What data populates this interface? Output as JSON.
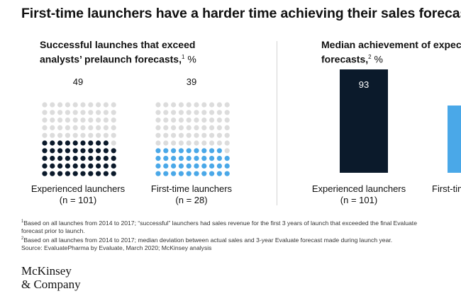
{
  "title": "First-time launchers have a harder time achieving their sales forecasts.",
  "left_panel": {
    "subtitle_line1": "Successful launches that exceed",
    "subtitle_line2": "analysts’ prelaunch forecasts,",
    "subtitle_sup": "1",
    "subtitle_unit": "%"
  },
  "right_panel": {
    "subtitle_line1": "Median achievement of expected",
    "subtitle_line2": "forecasts,",
    "subtitle_sup": "2",
    "subtitle_unit": "%"
  },
  "chart_data": [
    {
      "type": "waffle",
      "unit": "%",
      "grid": [
        10,
        10
      ],
      "categories": [
        "Experienced launchers",
        "First-time launchers"
      ],
      "sample_sizes": [
        "(n = 101)",
        "(n = 28)"
      ],
      "values": [
        49,
        39
      ],
      "colors": [
        "#0b1a2b",
        "#4aa8e8"
      ],
      "empty_color": "#dcdcdc"
    },
    {
      "type": "bar",
      "unit": "%",
      "categories": [
        "Experienced launchers",
        "First-time launchers"
      ],
      "sample_sizes": [
        "(n = 101)",
        ""
      ],
      "values": [
        93,
        null
      ],
      "colors": [
        "#0b1a2b",
        "#4aa8e8"
      ],
      "value_labels": [
        "93",
        ""
      ]
    }
  ],
  "footnotes": {
    "note1_sup": "1",
    "note1_line1": "Based on all launches from 2014 to 2017; “successful” launchers had sales revenue for the first 3 years of launch that exceeded the final Evaluate",
    "note1_line2": "forecast prior to launch.",
    "note2_sup": "2",
    "note2_line1": "Based on all launches from 2014 to 2017; median deviation between actual sales and 3-year Evaluate forecast made during launch year.",
    "source": "Source: EvaluatePharma by Evaluate, March 2020; McKinsey analysis"
  },
  "logo": {
    "line1": "McKinsey",
    "line2": "& Company"
  }
}
